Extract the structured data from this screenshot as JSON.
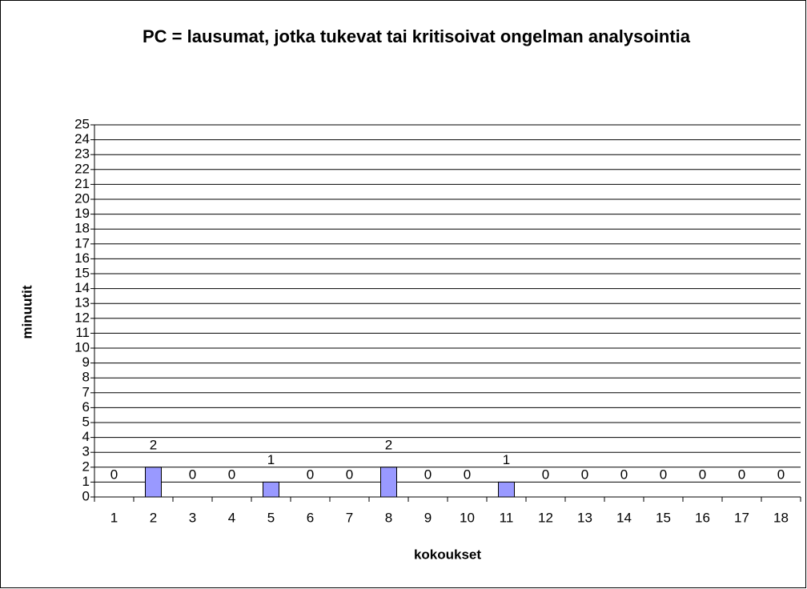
{
  "chart_data": {
    "type": "bar",
    "title": "PC = lausumat, jotka tukevat tai kritisoivat ongelman analysointia",
    "x_label": "kokoukset",
    "y_label": "minuutit",
    "categories": [
      "1",
      "2",
      "3",
      "4",
      "5",
      "6",
      "7",
      "8",
      "9",
      "10",
      "11",
      "12",
      "13",
      "14",
      "15",
      "16",
      "17",
      "18"
    ],
    "values": [
      0,
      2,
      0,
      0,
      1,
      0,
      0,
      2,
      0,
      0,
      1,
      0,
      0,
      0,
      0,
      0,
      0,
      0
    ],
    "color": "#9999ff",
    "ylim": [
      0,
      25
    ],
    "yticks": [
      0,
      1,
      2,
      3,
      4,
      5,
      6,
      7,
      8,
      9,
      10,
      11,
      12,
      13,
      14,
      15,
      16,
      17,
      18,
      19,
      20,
      21,
      22,
      23,
      24,
      25
    ],
    "grid": true
  }
}
